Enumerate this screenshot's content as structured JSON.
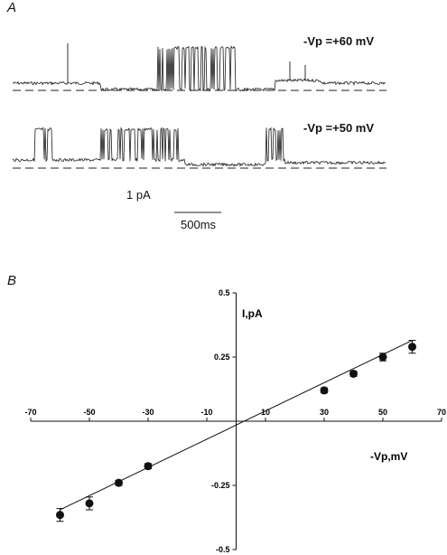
{
  "panel_a": {
    "label": "A",
    "traces": [
      {
        "label": "-Vp =+60 mV"
      },
      {
        "label": "-Vp =+50 mV"
      }
    ],
    "scale_current": "1 pA",
    "scale_time": "500ms"
  },
  "panel_b": {
    "label": "B"
  },
  "chart_data": {
    "type": "scatter",
    "title": "",
    "xlabel": "-Vp,mV",
    "ylabel": "I,pA",
    "xlim": [
      -70,
      70
    ],
    "ylim": [
      -0.5,
      0.5
    ],
    "x_ticks": [
      -70,
      -50,
      -30,
      -10,
      10,
      30,
      50,
      70
    ],
    "x_tick_labels": [
      "-70",
      "-50",
      "-30",
      "-10",
      "10",
      "30",
      "50",
      "70"
    ],
    "y_ticks": [
      0.5,
      0.25,
      -0.25,
      -0.5
    ],
    "y_tick_labels": [
      "0.5",
      "0.25",
      "-0.25",
      "-0.5"
    ],
    "grid": false,
    "series": [
      {
        "x": [
          -60,
          -50,
          -40,
          -30,
          30,
          40,
          50,
          60
        ],
        "y": [
          -0.365,
          -0.32,
          -0.24,
          -0.175,
          0.12,
          0.185,
          0.25,
          0.29
        ],
        "yerr": [
          0.025,
          0.025,
          0.01,
          0.01,
          0.01,
          0.01,
          0.015,
          0.025
        ]
      }
    ],
    "fit_line": {
      "x": [
        -60,
        60
      ],
      "y": [
        -0.345,
        0.315
      ]
    }
  }
}
